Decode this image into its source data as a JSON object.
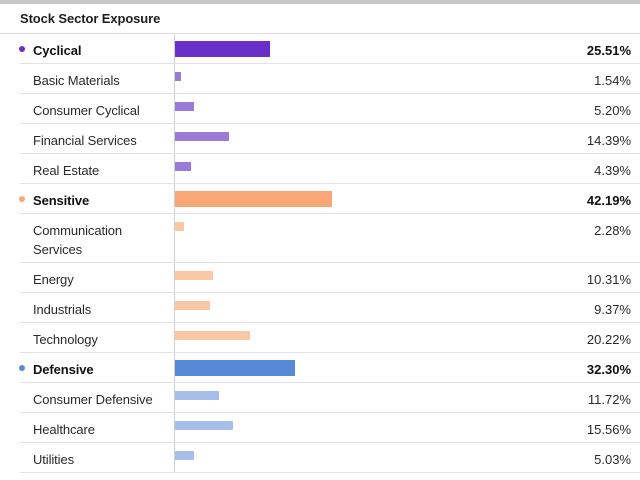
{
  "header": {
    "title": "Stock Sector Exposure"
  },
  "chart_data": {
    "type": "bar",
    "title": "Stock Sector Exposure",
    "unit": "%",
    "groups": [
      {
        "name": "Cyclical",
        "value": 25.51,
        "display": "25.51%",
        "color": "#6a2fc8",
        "sub_color": "#9b7ad8",
        "items": [
          {
            "name": "Basic Materials",
            "value": 1.54,
            "display": "1.54%"
          },
          {
            "name": "Consumer Cyclical",
            "value": 5.2,
            "display": "5.20%"
          },
          {
            "name": "Financial Services",
            "value": 14.39,
            "display": "14.39%"
          },
          {
            "name": "Real Estate",
            "value": 4.39,
            "display": "4.39%"
          }
        ]
      },
      {
        "name": "Sensitive",
        "value": 42.19,
        "display": "42.19%",
        "color": "#f9a777",
        "sub_color": "#fbc8a5",
        "items": [
          {
            "name": "Communication Services",
            "value": 2.28,
            "display": "2.28%"
          },
          {
            "name": "Energy",
            "value": 10.31,
            "display": "10.31%"
          },
          {
            "name": "Industrials",
            "value": 9.37,
            "display": "9.37%"
          },
          {
            "name": "Technology",
            "value": 20.22,
            "display": "20.22%"
          }
        ]
      },
      {
        "name": "Defensive",
        "value": 32.3,
        "display": "32.30%",
        "color": "#578ad6",
        "sub_color": "#a6bfe9",
        "items": [
          {
            "name": "Consumer Defensive",
            "value": 11.72,
            "display": "11.72%"
          },
          {
            "name": "Healthcare",
            "value": 15.56,
            "display": "15.56%"
          },
          {
            "name": "Utilities",
            "value": 5.03,
            "display": "5.03%"
          }
        ]
      }
    ]
  }
}
